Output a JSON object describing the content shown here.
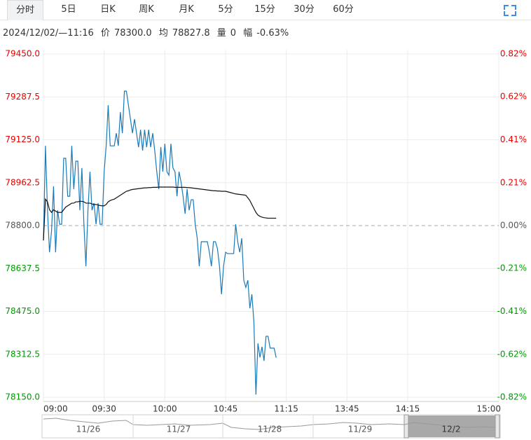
{
  "tabs": [
    "分时",
    "5日",
    "日K",
    "周K",
    "月K",
    "5分",
    "15分",
    "30分",
    "60分"
  ],
  "info": {
    "datetime": "2024/12/02/—11:16",
    "price_label": "价",
    "price": "78300.0",
    "avg_label": "均",
    "avg": "78827.8",
    "volume_label": "量",
    "volume": "0",
    "range_label": "幅",
    "range": "-0.63%"
  },
  "navigator": {
    "dates": [
      "11/26",
      "11/27",
      "11/28",
      "11/29",
      "12/2"
    ]
  },
  "chart_data": {
    "type": "line",
    "xlim": [
      0,
      225
    ],
    "xticks": [
      {
        "value": 0,
        "label": "09:00"
      },
      {
        "value": 30,
        "label": "09:30"
      },
      {
        "value": 60,
        "label": "10:00"
      },
      {
        "value": 90,
        "label": "10:45"
      },
      {
        "value": 120,
        "label": "11:15"
      },
      {
        "value": 150,
        "label": "13:45"
      },
      {
        "value": 180,
        "label": "14:15"
      },
      {
        "value": 225,
        "label": "15:00"
      }
    ],
    "ylim": [
      78150,
      79450
    ],
    "yticks": [
      {
        "value": 79450,
        "label": "79450.0"
      },
      {
        "value": 79287.5,
        "label": "79287.5"
      },
      {
        "value": 79125,
        "label": "79125.0"
      },
      {
        "value": 78962.5,
        "label": "78962.5"
      },
      {
        "value": 78800,
        "label": "78800.0"
      },
      {
        "value": 78637.5,
        "label": "78637.5"
      },
      {
        "value": 78475,
        "label": "78475.0"
      },
      {
        "value": 78312.5,
        "label": "78312.5"
      },
      {
        "value": 78150,
        "label": "78150.0"
      }
    ],
    "y2lim": [
      -0.8249,
      0.8249
    ],
    "y2ticks": [
      {
        "value": 0.8249,
        "label": "0.82%"
      },
      {
        "value": 0.6187,
        "label": "0.62%"
      },
      {
        "value": 0.4124,
        "label": "0.41%"
      },
      {
        "value": 0.2062,
        "label": "0.21%"
      },
      {
        "value": 0,
        "label": "0.00%"
      },
      {
        "value": -0.2062,
        "label": "-0.21%"
      },
      {
        "value": -0.4124,
        "label": "-0.41%"
      },
      {
        "value": -0.6187,
        "label": "-0.62%"
      },
      {
        "value": -0.8249,
        "label": "-0.82%"
      }
    ],
    "up_color": "#e60000",
    "down_color": "#009900",
    "flat_color": "#555555",
    "grid": true,
    "series": [
      {
        "color": "#1a7ab8",
        "values": [
          78744,
          79102,
          78858,
          78699,
          78779,
          78949,
          78699,
          78858,
          78805,
          78805,
          79055,
          79055,
          78911,
          78911,
          79102,
          78938,
          79044,
          79044,
          78858,
          79018,
          78805,
          78646,
          78858,
          79004,
          78858,
          78885,
          78805,
          78885,
          78805,
          78805,
          79004,
          79102,
          79256,
          79102,
          79102,
          79102,
          79150,
          79102,
          79230,
          79150,
          79309,
          79309,
          79256,
          79203,
          79150,
          79203,
          79150,
          79097,
          79163,
          79084,
          79163,
          79097,
          79163,
          79097,
          79150,
          79084,
          79004,
          78938,
          79097,
          79004,
          79110,
          79004,
          78991,
          79110,
          79018,
          79004,
          78911,
          79004,
          78965,
          78911,
          78845,
          78938,
          78858,
          78898,
          78898,
          78805,
          78752,
          78646,
          78739,
          78739,
          78739,
          78739,
          78699,
          78646,
          78739,
          78739,
          78712,
          78646,
          78540,
          78646,
          78699,
          78694,
          78694,
          78694,
          78694,
          78805,
          78739,
          78699,
          78752,
          78593,
          78566,
          78593,
          78487,
          78540,
          78434,
          78160,
          78354,
          78301,
          78341,
          78288,
          78381,
          78381,
          78336,
          78336,
          78336,
          78300
        ]
      },
      {
        "color": "#111111",
        "values": [
          78744,
          78900,
          78890,
          78860,
          78850,
          78860,
          78855,
          78850,
          78850,
          78850,
          78860,
          78870,
          78875,
          78880,
          78885,
          78885,
          78890,
          78890,
          78892,
          78892,
          78890,
          78885,
          78885,
          78885,
          78882,
          78880,
          78880,
          78878,
          78876,
          78875,
          78875,
          78880,
          78890,
          78895,
          78898,
          78900,
          78905,
          78910,
          78915,
          78920,
          78925,
          78930,
          78932,
          78935,
          78937,
          78938,
          78939,
          78940,
          78941,
          78942,
          78943,
          78943,
          78944,
          78944,
          78945,
          78945,
          78945,
          78946,
          78946,
          78946,
          78946,
          78946,
          78946,
          78946,
          78946,
          78945,
          78945,
          78945,
          78945,
          78945,
          78945,
          78944,
          78944,
          78943,
          78942,
          78941,
          78940,
          78939,
          78938,
          78937,
          78936,
          78935,
          78934,
          78933,
          78932,
          78932,
          78931,
          78931,
          78930,
          78930,
          78930,
          78928,
          78926,
          78924,
          78922,
          78920,
          78919,
          78918,
          78917,
          78916,
          78915,
          78905,
          78895,
          78880,
          78865,
          78850,
          78840,
          78835,
          78832,
          78830,
          78829,
          78828,
          78828,
          78828,
          78828,
          78827.8
        ]
      }
    ]
  }
}
